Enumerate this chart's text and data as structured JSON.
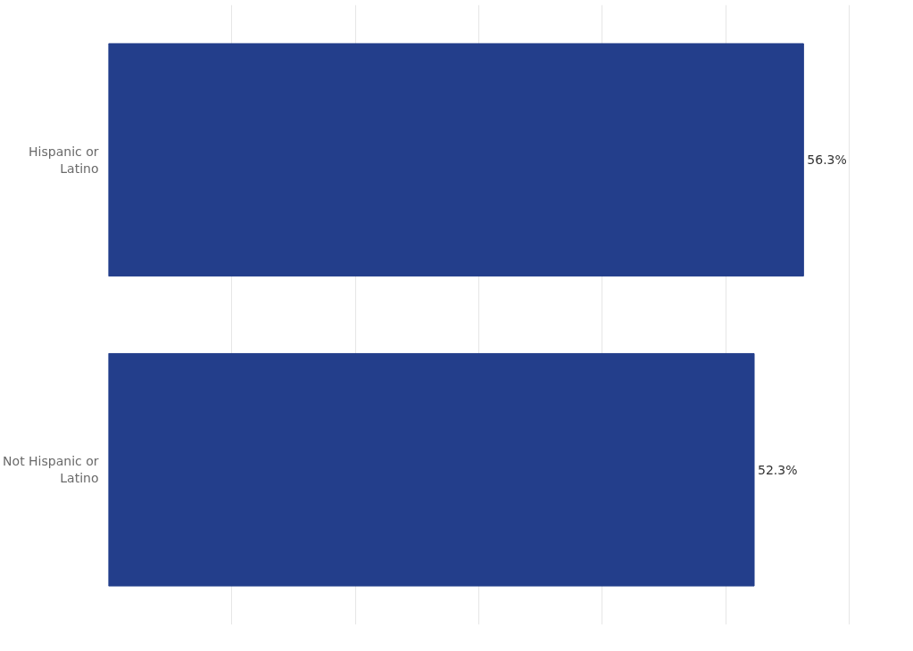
{
  "chart_data": {
    "type": "bar",
    "orientation": "horizontal",
    "categories": [
      "Hispanic or Latino",
      "Not Hispanic or Latino"
    ],
    "values": [
      56.3,
      52.3
    ],
    "color": "#233e8b",
    "value_labels": [
      "56.3%",
      "52.3%"
    ],
    "grid": "x",
    "tick_labels": "y"
  }
}
